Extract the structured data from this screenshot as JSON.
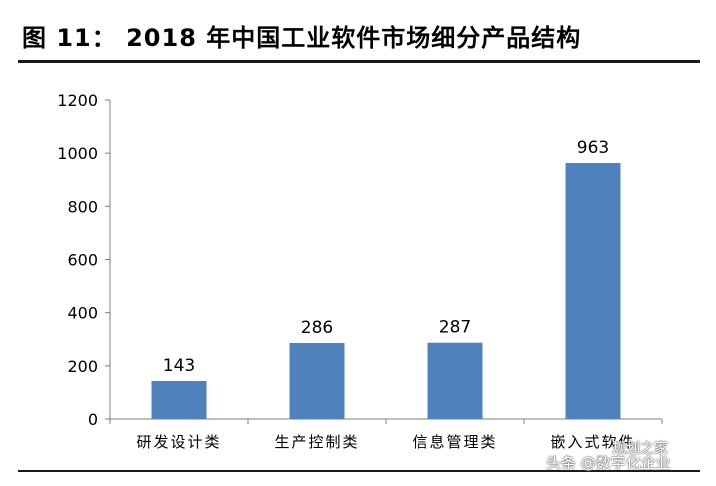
{
  "figure": {
    "title": "图 11： 2018 年中国工业软件市场细分产品结构"
  },
  "chart_data": {
    "type": "bar",
    "categories": [
      "研发设计类",
      "生产控制类",
      "信息管理类",
      "嵌入式软件"
    ],
    "values": [
      143,
      286,
      287,
      963
    ],
    "data_labels": [
      "143",
      "286",
      "287",
      "963"
    ],
    "ylim": [
      0,
      1200
    ],
    "yticks": [
      0,
      200,
      400,
      600,
      800,
      1000,
      1200
    ],
    "ytick_labels": [
      "0",
      "200",
      "400",
      "600",
      "800",
      "1000",
      "1200"
    ],
    "bar_color": "#4F81BD",
    "grid": false,
    "legend": "none",
    "title": "",
    "xlabel": "",
    "ylabel": ""
  },
  "watermark": {
    "line1": "规划之家",
    "line2": "头条 @数字化企业"
  }
}
